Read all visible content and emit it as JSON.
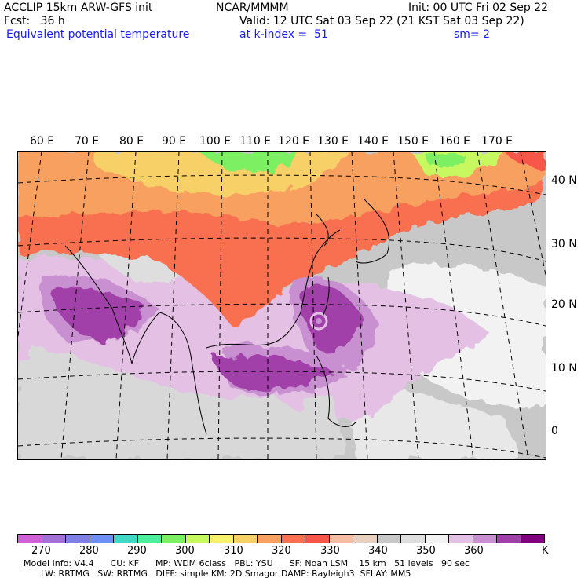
{
  "header": {
    "model": "ACCLIP 15km ARW-GFS init",
    "org": "NCAR/MMMM",
    "init": "Init: 00 UTC Fri 02 Sep 22",
    "fcst": "Fcst:   36 h",
    "valid": "Valid: 12 UTC Sat 03 Sep 22 (21 KST Sat 03 Sep 22)",
    "field": "Equivalent potential temperature",
    "level": "at k-index =  51",
    "smooth": "sm= 2"
  },
  "lon_labels": [
    "60 E",
    "70 E",
    "80 E",
    "90 E",
    "100 E",
    "110 E",
    "120 E",
    "130 E",
    "140 E",
    "150 E",
    "160 E",
    "170 E"
  ],
  "lat_labels": [
    "40 N",
    "30 N",
    "20 N",
    "10 N",
    "0"
  ],
  "colorbar": {
    "colors": [
      "#d15fd8",
      "#a470d8",
      "#7f7fe6",
      "#6e8ff4",
      "#40d8c8",
      "#4cf09a",
      "#7cf062",
      "#c8f860",
      "#f8f06c",
      "#f8d068",
      "#f8a060",
      "#f87050",
      "#f85648",
      "#f8bca4",
      "#e8d0c0",
      "#c8c8c8",
      "#dedede",
      "#f2f2f2",
      "#e4c0e4",
      "#c890d0",
      "#a040a8",
      "#800080"
    ],
    "ticks": [
      "270",
      "280",
      "290",
      "300",
      "310",
      "320",
      "330",
      "340",
      "350",
      "360",
      "K"
    ]
  },
  "model_info": {
    "line1": "Model Info: V4.4      CU: KF      MP: WDM 6class   PBL: YSU      SF: Noah LSM    15 km   51 levels   90 sec",
    "line2": "LW: RRTMG   SW: RRTMG   DIFF: simple KM: 2D Smagor DAMP: Rayleigh3  SFLAY: MM5"
  }
}
